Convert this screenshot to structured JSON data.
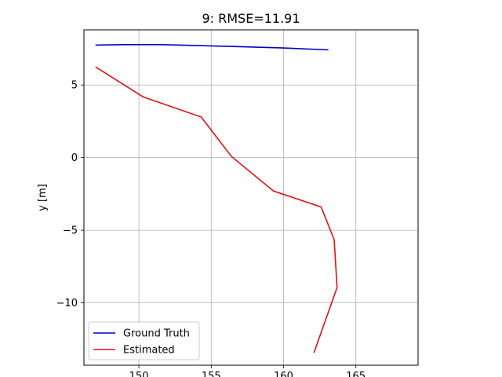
{
  "chart_data": {
    "type": "line",
    "title": "9: RMSE=11.91",
    "xlabel": "",
    "ylabel": "y [m]",
    "xlim": [
      146.2,
      169.3
    ],
    "ylim": [
      -14.3,
      8.8
    ],
    "xticks": [
      150,
      155,
      160,
      165
    ],
    "yticks": [
      5,
      0,
      -5,
      -10
    ],
    "grid": true,
    "legend_position": "lower-left",
    "series": [
      {
        "name": "Ground Truth",
        "color": "#0000cc",
        "x": [
          147.0,
          149.0,
          151.5,
          154.0,
          157.0,
          160.0,
          163.1
        ],
        "y": [
          7.75,
          7.78,
          7.78,
          7.72,
          7.64,
          7.55,
          7.42
        ]
      },
      {
        "name": "Estimated",
        "color": "#dd1111",
        "x": [
          147.0,
          150.3,
          154.3,
          156.4,
          159.3,
          162.6,
          163.5,
          163.7,
          162.1
        ],
        "y": [
          6.25,
          4.18,
          2.8,
          0.08,
          -2.3,
          -3.4,
          -5.65,
          -8.95,
          -13.45
        ]
      }
    ]
  }
}
